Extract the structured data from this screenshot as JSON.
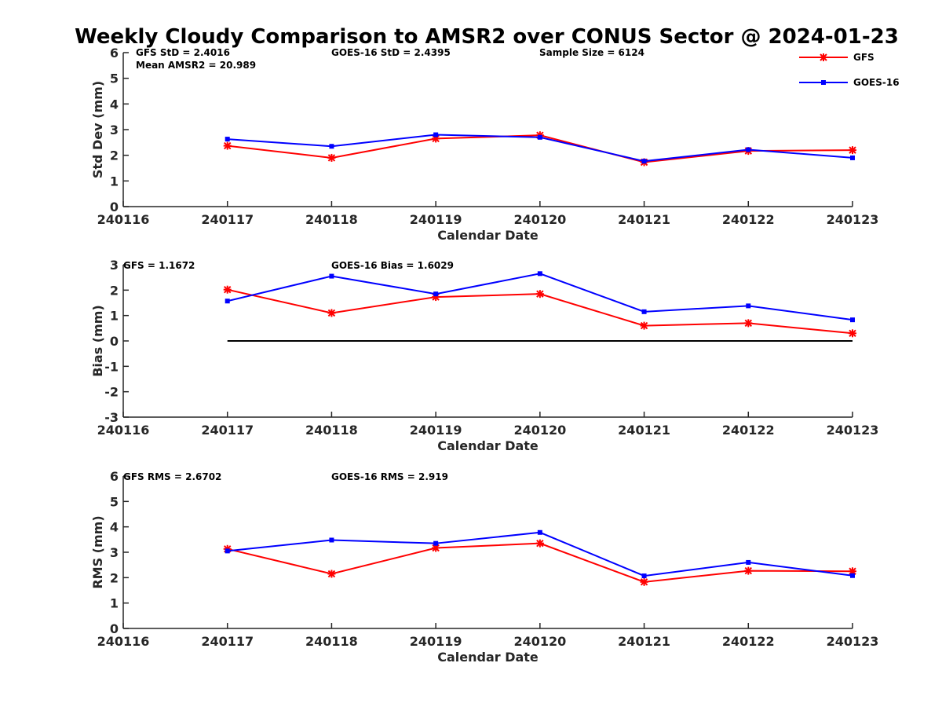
{
  "title": "Weekly Cloudy Comparison to AMSR2 over CONUS Sector @ 2024-01-23",
  "legend": [
    {
      "name": "GFS",
      "color": "#ff0000",
      "marker": "asterisk"
    },
    {
      "name": "GOES-16",
      "color": "#0000ff",
      "marker": "square"
    }
  ],
  "chart_data": [
    {
      "type": "line",
      "xlabel": "Calendar Date",
      "ylabel": "Std Dev (mm)",
      "categories": [
        "240116",
        "240117",
        "240118",
        "240119",
        "240120",
        "240121",
        "240122",
        "240123"
      ],
      "ylim": [
        0,
        6
      ],
      "yticks": [
        "0",
        "1",
        "2",
        "3",
        "4",
        "5",
        "6"
      ],
      "annotations": [
        "GFS StD = 2.4016",
        "GOES-16 StD = 2.4395",
        "Sample Size = 6124",
        "Mean AMSR2 = 20.989"
      ],
      "series": [
        {
          "name": "GFS",
          "x": [
            "240117",
            "240118",
            "240119",
            "240120",
            "240121",
            "240122",
            "240123"
          ],
          "values": [
            2.37,
            1.9,
            2.65,
            2.78,
            1.73,
            2.17,
            2.2
          ]
        },
        {
          "name": "GOES-16",
          "x": [
            "240117",
            "240118",
            "240119",
            "240120",
            "240121",
            "240122",
            "240123"
          ],
          "values": [
            2.63,
            2.35,
            2.8,
            2.7,
            1.77,
            2.22,
            1.9
          ]
        }
      ],
      "legend_position": "top-right"
    },
    {
      "type": "line",
      "xlabel": "Calendar Date",
      "ylabel": "Bias (mm)",
      "categories": [
        "240116",
        "240117",
        "240118",
        "240119",
        "240120",
        "240121",
        "240122",
        "240123"
      ],
      "ylim": [
        -3,
        3
      ],
      "yticks": [
        "-3",
        "-2",
        "-1",
        "0",
        "1",
        "2",
        "3"
      ],
      "annotations": [
        "GFS = 1.1672",
        "GOES-16 Bias  = 1.6029"
      ],
      "zero_line": {
        "from": "240117",
        "to": "240123",
        "value": 0
      },
      "series": [
        {
          "name": "GFS",
          "x": [
            "240117",
            "240118",
            "240119",
            "240120",
            "240121",
            "240122",
            "240123"
          ],
          "values": [
            2.02,
            1.1,
            1.73,
            1.85,
            0.6,
            0.7,
            0.3
          ]
        },
        {
          "name": "GOES-16",
          "x": [
            "240117",
            "240118",
            "240119",
            "240120",
            "240121",
            "240122",
            "240123"
          ],
          "values": [
            1.57,
            2.55,
            1.85,
            2.65,
            1.15,
            1.38,
            0.83
          ]
        }
      ]
    },
    {
      "type": "line",
      "xlabel": "Calendar Date",
      "ylabel": "RMS (mm)",
      "categories": [
        "240116",
        "240117",
        "240118",
        "240119",
        "240120",
        "240121",
        "240122",
        "240123"
      ],
      "ylim": [
        0,
        6
      ],
      "yticks": [
        "0",
        "1",
        "2",
        "3",
        "4",
        "5",
        "6"
      ],
      "annotations": [
        "GFS RMS = 2.6702",
        "GOES-16 RMS = 2.919"
      ],
      "series": [
        {
          "name": "GFS",
          "x": [
            "240117",
            "240118",
            "240119",
            "240120",
            "240121",
            "240122",
            "240123"
          ],
          "values": [
            3.13,
            2.15,
            3.17,
            3.35,
            1.83,
            2.27,
            2.25
          ]
        },
        {
          "name": "GOES-16",
          "x": [
            "240117",
            "240118",
            "240119",
            "240120",
            "240121",
            "240122",
            "240123"
          ],
          "values": [
            3.05,
            3.48,
            3.35,
            3.78,
            2.07,
            2.6,
            2.08
          ]
        }
      ]
    }
  ]
}
